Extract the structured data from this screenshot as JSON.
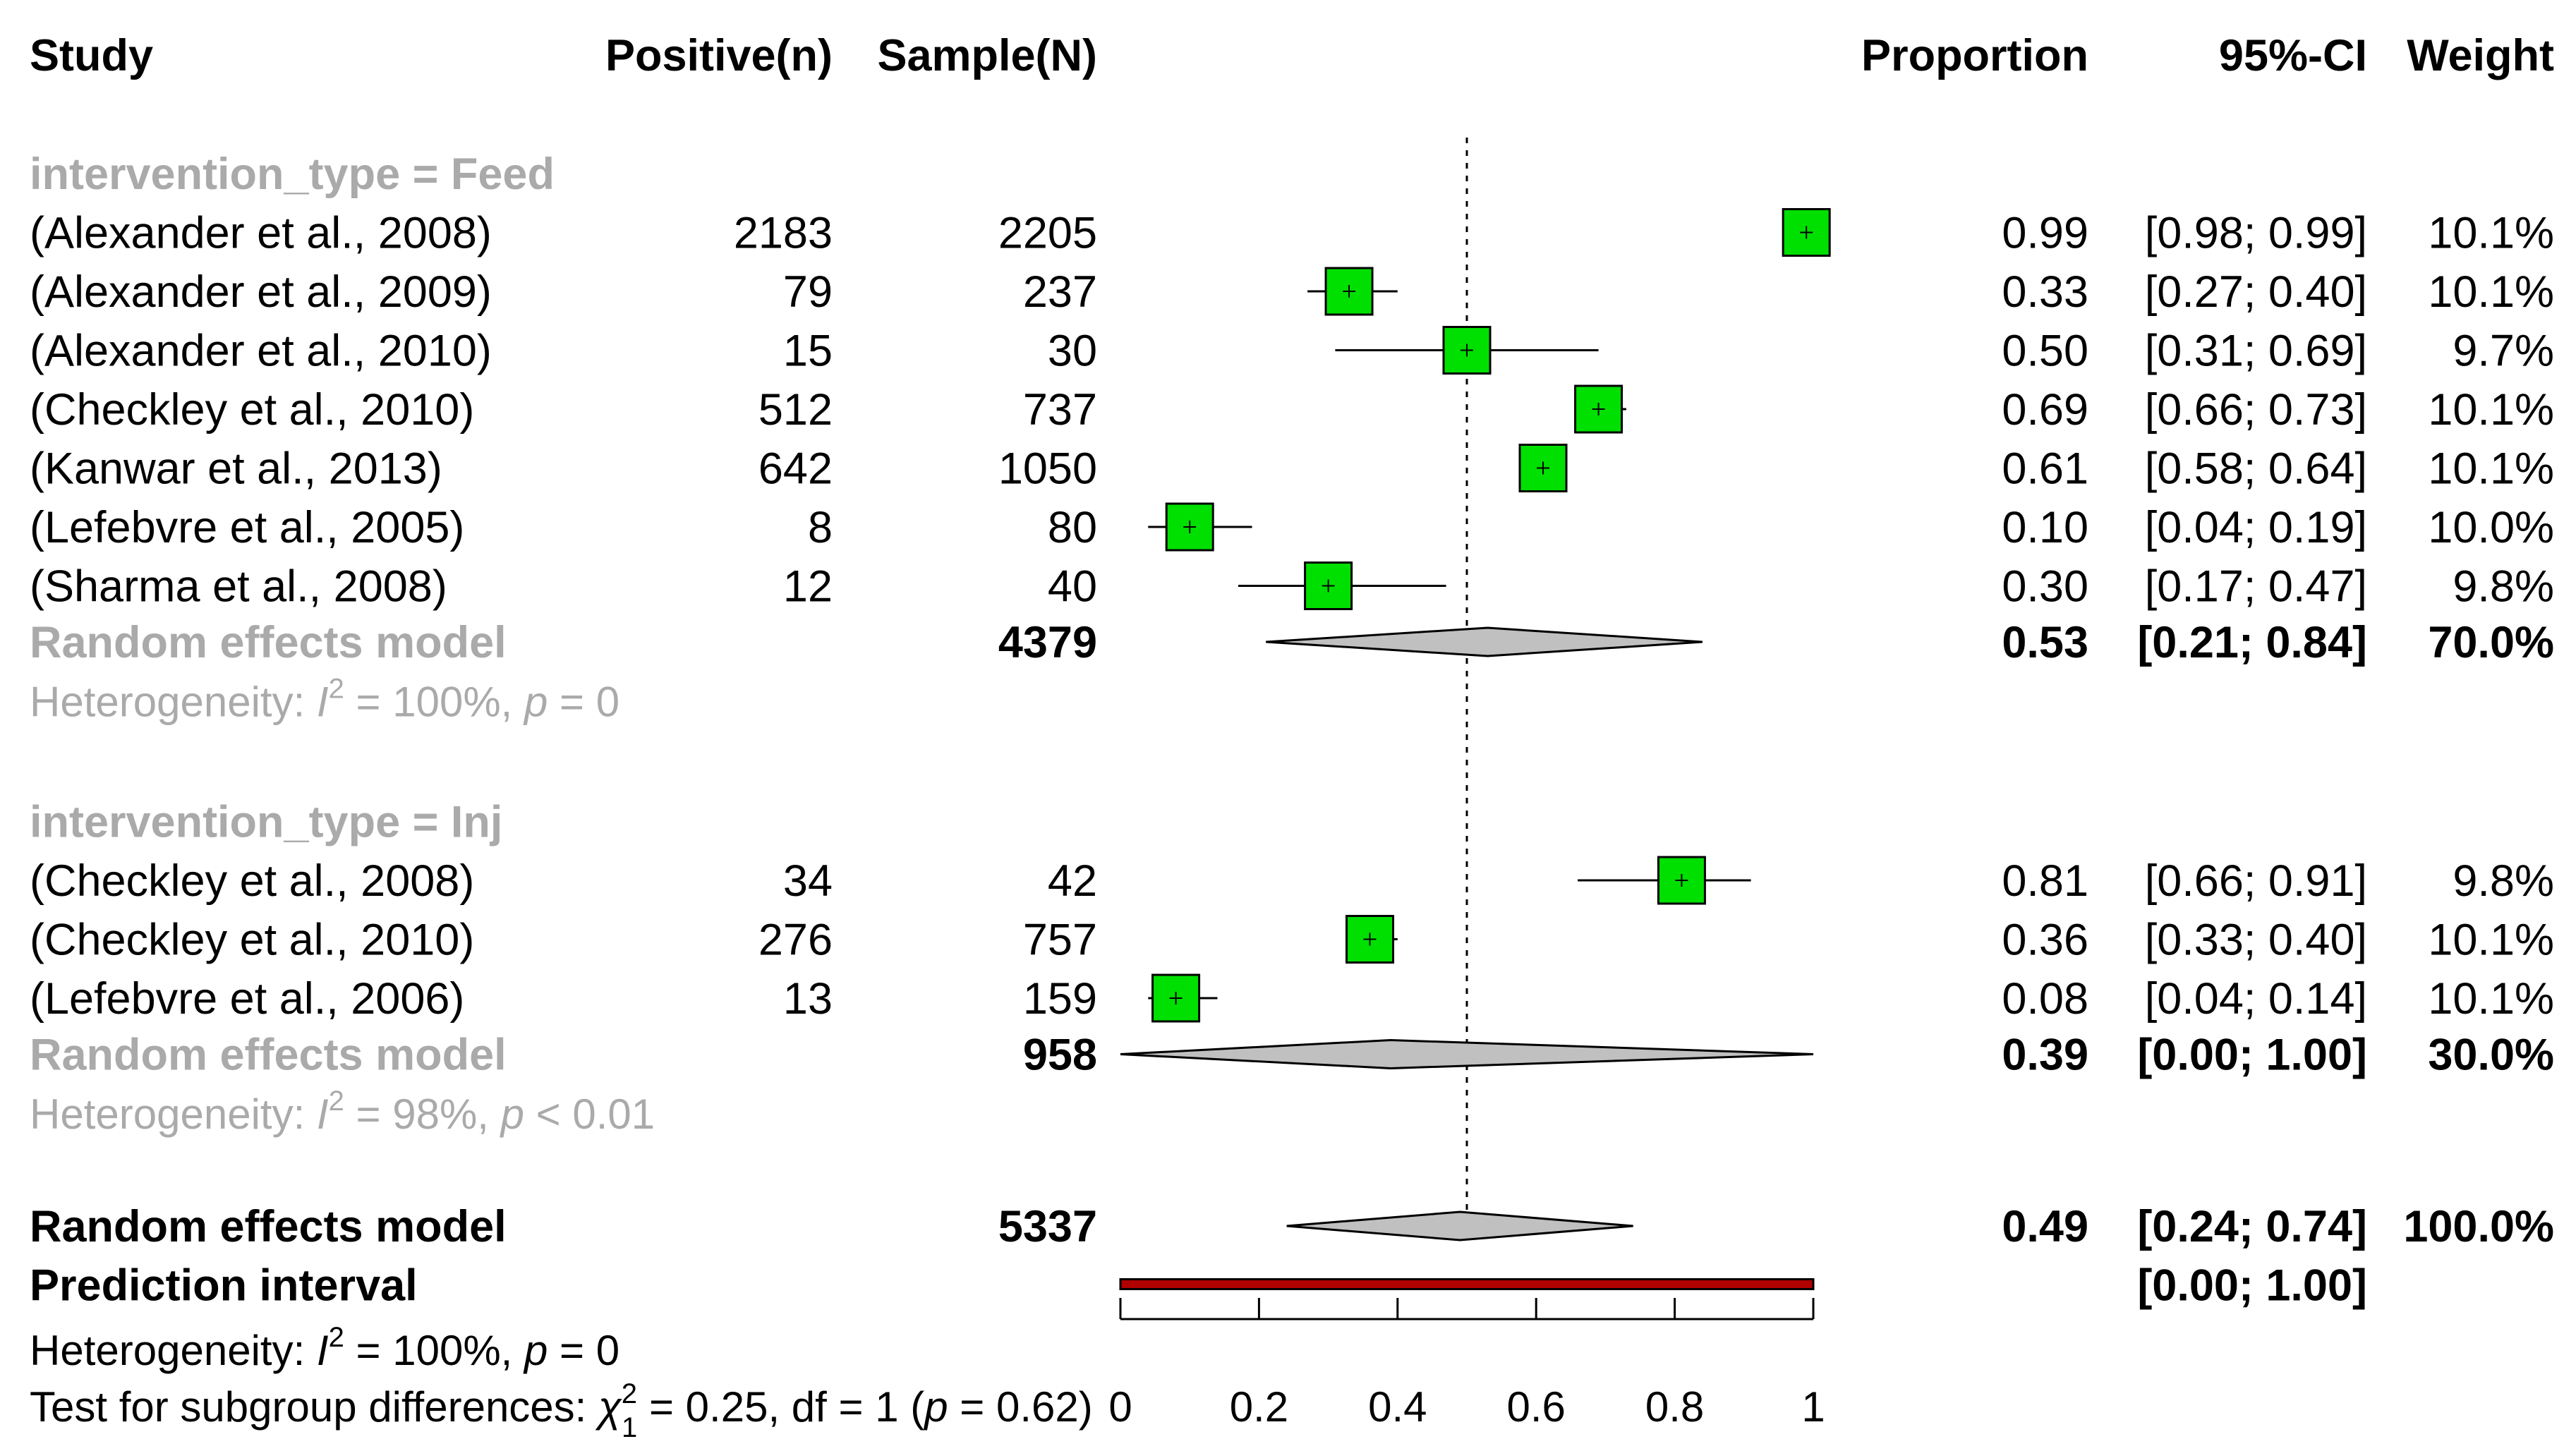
{
  "chart_data": {
    "type": "forest",
    "x_axis": {
      "min": 0,
      "max": 1,
      "ticks": [
        0,
        0.2,
        0.4,
        0.6,
        0.8,
        1
      ],
      "tick_labels": [
        "0",
        "0.2",
        "0.4",
        "0.6",
        "0.8",
        "1"
      ],
      "reference_line": 0.5
    },
    "headers": {
      "study": "Study",
      "positive": "Positive(n)",
      "sample": "Sample(N)",
      "proportion": "Proportion",
      "ci": "95%-CI",
      "weight": "Weight"
    },
    "subgroups": [
      {
        "label": "intervention_type = Feed",
        "studies": [
          {
            "study": "(Alexander et al., 2008)",
            "positive": "2183",
            "sample": "2205",
            "prop": 0.99,
            "lo": 0.98,
            "hi": 0.99,
            "prop_text": "0.99",
            "ci_text": "[0.98; 0.99]",
            "weight_text": "10.1%"
          },
          {
            "study": "(Alexander et al., 2009)",
            "positive": "79",
            "sample": "237",
            "prop": 0.33,
            "lo": 0.27,
            "hi": 0.4,
            "prop_text": "0.33",
            "ci_text": "[0.27; 0.40]",
            "weight_text": "10.1%"
          },
          {
            "study": "(Alexander et al., 2010)",
            "positive": "15",
            "sample": "30",
            "prop": 0.5,
            "lo": 0.31,
            "hi": 0.69,
            "prop_text": "0.50",
            "ci_text": "[0.31; 0.69]",
            "weight_text": "9.7%"
          },
          {
            "study": "(Checkley et al., 2010)",
            "positive": "512",
            "sample": "737",
            "prop": 0.69,
            "lo": 0.66,
            "hi": 0.73,
            "prop_text": "0.69",
            "ci_text": "[0.66; 0.73]",
            "weight_text": "10.1%"
          },
          {
            "study": "(Kanwar et al., 2013)",
            "positive": "642",
            "sample": "1050",
            "prop": 0.61,
            "lo": 0.58,
            "hi": 0.64,
            "prop_text": "0.61",
            "ci_text": "[0.58; 0.64]",
            "weight_text": "10.1%"
          },
          {
            "study": "(Lefebvre et al., 2005)",
            "positive": "8",
            "sample": "80",
            "prop": 0.1,
            "lo": 0.04,
            "hi": 0.19,
            "prop_text": "0.10",
            "ci_text": "[0.04; 0.19]",
            "weight_text": "10.0%"
          },
          {
            "study": "(Sharma et al., 2008)",
            "positive": "12",
            "sample": "40",
            "prop": 0.3,
            "lo": 0.17,
            "hi": 0.47,
            "prop_text": "0.30",
            "ci_text": "[0.17; 0.47]",
            "weight_text": "9.8%"
          }
        ],
        "pooled": {
          "label": "Random effects model",
          "sample": "4379",
          "prop": 0.53,
          "lo": 0.21,
          "hi": 0.84,
          "prop_text": "0.53",
          "ci_text": "[0.21; 0.84]",
          "weight_text": "70.0%"
        },
        "heterogeneity": {
          "prefix": "Heterogeneity: ",
          "i2_value": " = 100%, ",
          "p_value": " = 0"
        }
      },
      {
        "label": "intervention_type = Inj",
        "studies": [
          {
            "study": "(Checkley et al., 2008)",
            "positive": "34",
            "sample": "42",
            "prop": 0.81,
            "lo": 0.66,
            "hi": 0.91,
            "prop_text": "0.81",
            "ci_text": "[0.66; 0.91]",
            "weight_text": "9.8%"
          },
          {
            "study": "(Checkley et al., 2010)",
            "positive": "276",
            "sample": "757",
            "prop": 0.36,
            "lo": 0.33,
            "hi": 0.4,
            "prop_text": "0.36",
            "ci_text": "[0.33; 0.40]",
            "weight_text": "10.1%"
          },
          {
            "study": "(Lefebvre et al., 2006)",
            "positive": "13",
            "sample": "159",
            "prop": 0.08,
            "lo": 0.04,
            "hi": 0.14,
            "prop_text": "0.08",
            "ci_text": "[0.04; 0.14]",
            "weight_text": "10.1%"
          }
        ],
        "pooled": {
          "label": "Random effects model",
          "sample": "958",
          "prop": 0.39,
          "lo": 0.0,
          "hi": 1.0,
          "prop_text": "0.39",
          "ci_text": "[0.00; 1.00]",
          "weight_text": "30.0%"
        },
        "heterogeneity": {
          "prefix": "Heterogeneity: ",
          "i2_value": " = 98%, ",
          "p_value": " < 0.01"
        }
      }
    ],
    "overall": {
      "label": "Random effects model",
      "sample": "5337",
      "prop": 0.49,
      "lo": 0.24,
      "hi": 0.74,
      "prop_text": "0.49",
      "ci_text": "[0.24; 0.74]",
      "weight_text": "100.0%"
    },
    "prediction_interval": {
      "label": "Prediction interval",
      "lo": 0.0,
      "hi": 1.0,
      "ci_text": "[0.00; 1.00]"
    },
    "overall_heterogeneity": {
      "prefix": "Heterogeneity: ",
      "i2_value": " = 100%, ",
      "p_value": " = 0"
    },
    "subgroup_test": {
      "prefix": "Test for subgroup differences: ",
      "stat_value": " = 0.25, df = 1 (",
      "p_value": " = 0.62)"
    },
    "colors": {
      "study_box": "#00e000",
      "diamond_fill": "#c0c0c0",
      "prediction_bar": "#b00000",
      "subgroup_text": "#aaaaaa",
      "text": "#000000"
    }
  }
}
